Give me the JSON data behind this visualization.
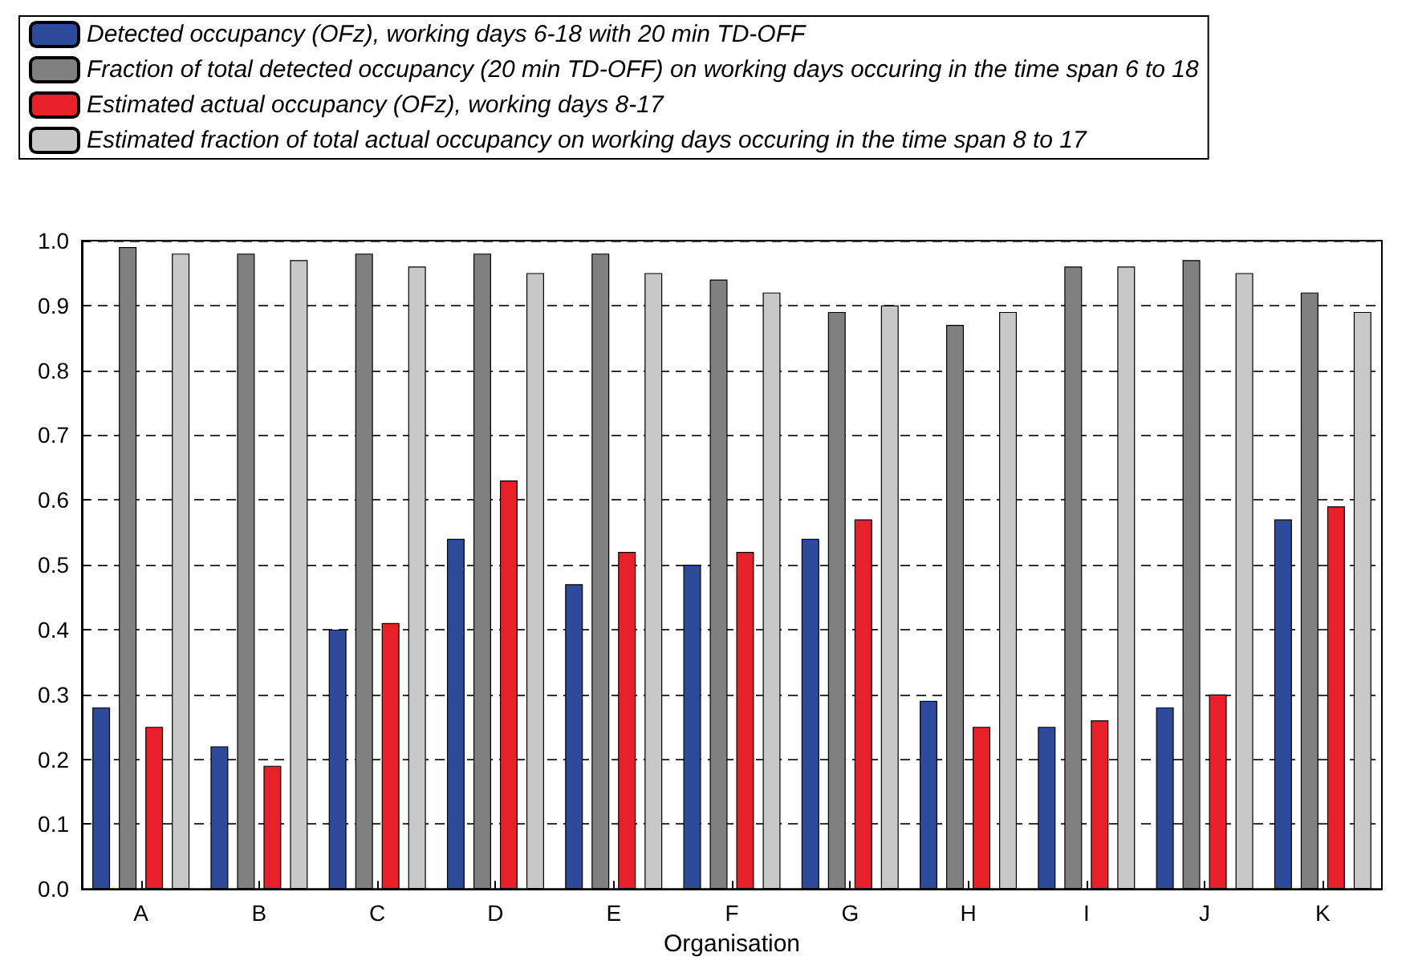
{
  "chart_data": {
    "type": "bar",
    "xlabel": "Organisation",
    "categories": [
      "A",
      "B",
      "C",
      "D",
      "E",
      "F",
      "G",
      "H",
      "I",
      "J",
      "K"
    ],
    "series": [
      {
        "name": "Detected occupancy (OFz), working days 6-18 with 20 min TD-OFF",
        "color": "#2e4a9a",
        "values": [
          0.28,
          0.22,
          0.4,
          0.54,
          0.47,
          0.5,
          0.54,
          0.29,
          0.25,
          0.28,
          0.57
        ]
      },
      {
        "name": "Fraction of total detected occupancy (20 min TD-OFF) on working days occuring in the time span 6 to 18",
        "color": "#808080",
        "values": [
          0.99,
          0.98,
          0.98,
          0.98,
          0.98,
          0.94,
          0.89,
          0.87,
          0.96,
          0.97,
          0.92
        ]
      },
      {
        "name": "Estimated actual occupancy (OFz), working days 8-17",
        "color": "#e8202a",
        "values": [
          0.25,
          0.19,
          0.41,
          0.63,
          0.52,
          0.52,
          0.57,
          0.25,
          0.26,
          0.3,
          0.59
        ]
      },
      {
        "name": "Estimated fraction of total actual occupancy on working days occuring in the time span 8 to 17",
        "color": "#c8c8c8",
        "values": [
          0.98,
          0.97,
          0.96,
          0.95,
          0.95,
          0.92,
          0.9,
          0.89,
          0.96,
          0.95,
          0.89
        ]
      }
    ],
    "ylim": [
      0,
      1
    ],
    "yticks": [
      {
        "value": 0,
        "label": "0.0"
      },
      0.1,
      0.2,
      0.3,
      0.4,
      0.5,
      0.6,
      0.7,
      0.8,
      0.9,
      {
        "value": 1,
        "label": "1.0"
      }
    ],
    "grid": "y",
    "legend": "top left"
  }
}
